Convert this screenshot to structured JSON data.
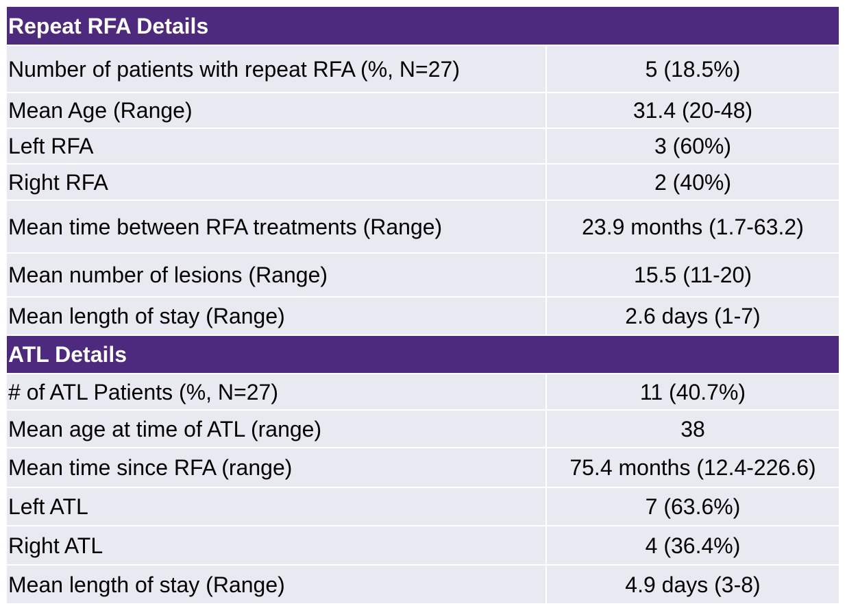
{
  "sections": [
    {
      "title": "Repeat RFA Details",
      "rows": [
        {
          "label": "Number of patients with repeat RFA (%, N=27)",
          "value": "5 (18.5%)"
        },
        {
          "label": "Mean Age (Range)",
          "value": "31.4 (20-48)"
        },
        {
          "label": "Left RFA",
          "value": "3 (60%)"
        },
        {
          "label": "Right RFA",
          "value": "2 (40%)"
        },
        {
          "label": "Mean time between RFA treatments (Range)",
          "value": "23.9 months (1.7-63.2)"
        },
        {
          "label": "Mean number of lesions (Range)",
          "value": "15.5 (11-20)"
        },
        {
          "label": "Mean length of stay (Range)",
          "value": "2.6 days (1-7)"
        }
      ]
    },
    {
      "title": "ATL Details",
      "rows": [
        {
          "label": "# of ATL Patients (%, N=27)",
          "value": "11 (40.7%)"
        },
        {
          "label": "Mean age at time of ATL (range)",
          "value": "38"
        },
        {
          "label": "Mean time since RFA (range)",
          "value": "75.4 months (12.4-226.6)"
        },
        {
          "label": "Left ATL",
          "value": "7 (63.6%)"
        },
        {
          "label": "Right ATL",
          "value": "4 (36.4%)"
        },
        {
          "label": "Mean length of stay (Range)",
          "value": "4.9 days (3-8)"
        }
      ]
    }
  ],
  "colors": {
    "header_bg": "#4e2a7f",
    "header_text": "#ffffff",
    "row_bg": "#e9eaf1",
    "grid_line": "#ffffff"
  }
}
